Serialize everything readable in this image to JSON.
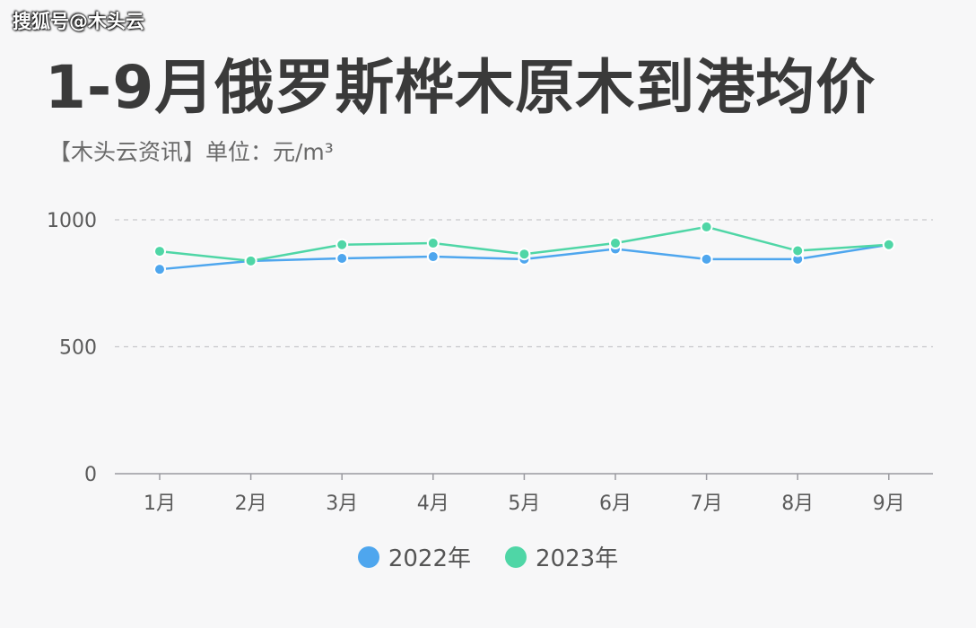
{
  "watermark": "搜狐号@木头云",
  "chart_data": {
    "type": "line",
    "title": "1-9月俄罗斯桦木原木到港均价",
    "subtitle": "【木头云资讯】单位：元/m³",
    "categories": [
      "1月",
      "2月",
      "3月",
      "4月",
      "5月",
      "6月",
      "7月",
      "8月",
      "9月"
    ],
    "ylim": [
      0,
      1000
    ],
    "yticks": [
      "0",
      "500",
      "1000"
    ],
    "grid": true,
    "legend_position": "bottom-center",
    "series": [
      {
        "name": "2022年",
        "color": "#4ea6ee",
        "values": [
          805,
          838,
          848,
          855,
          845,
          885,
          845,
          845,
          902
        ]
      },
      {
        "name": "2023年",
        "color": "#4fd6a6",
        "values": [
          876,
          838,
          902,
          908,
          865,
          908,
          972,
          878,
          902
        ]
      }
    ]
  }
}
